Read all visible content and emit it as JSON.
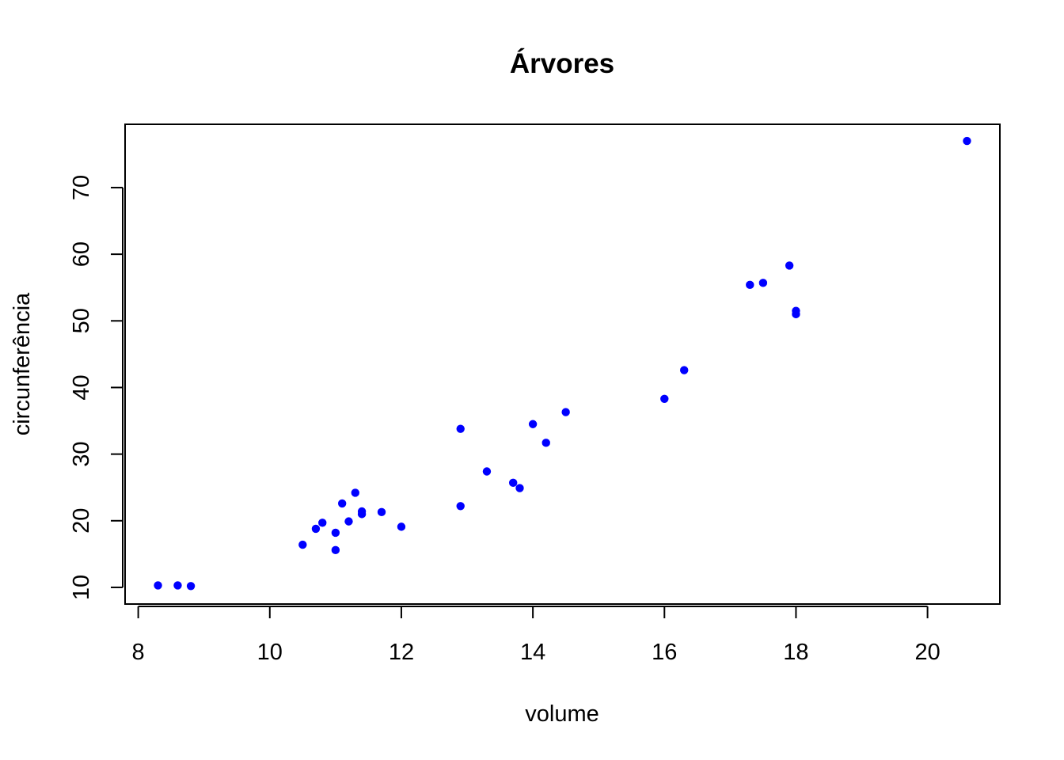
{
  "chart_data": {
    "type": "scatter",
    "title": "Árvores",
    "xlabel": "volume",
    "ylabel": "circunferência",
    "xlim": [
      7.8,
      21.1
    ],
    "ylim": [
      7.5,
      79.5
    ],
    "x_ticks": [
      8,
      10,
      12,
      14,
      16,
      18,
      20
    ],
    "y_ticks": [
      10,
      20,
      30,
      40,
      50,
      60,
      70
    ],
    "grid": false,
    "point_color": "#0000ff",
    "points": [
      {
        "x": 8.3,
        "y": 10.3
      },
      {
        "x": 8.6,
        "y": 10.3
      },
      {
        "x": 8.8,
        "y": 10.2
      },
      {
        "x": 10.5,
        "y": 16.4
      },
      {
        "x": 10.7,
        "y": 18.8
      },
      {
        "x": 10.8,
        "y": 19.7
      },
      {
        "x": 11.0,
        "y": 15.6
      },
      {
        "x": 11.0,
        "y": 18.2
      },
      {
        "x": 11.1,
        "y": 22.6
      },
      {
        "x": 11.2,
        "y": 19.9
      },
      {
        "x": 11.3,
        "y": 24.2
      },
      {
        "x": 11.4,
        "y": 21.0
      },
      {
        "x": 11.4,
        "y": 21.4
      },
      {
        "x": 11.7,
        "y": 21.3
      },
      {
        "x": 12.0,
        "y": 19.1
      },
      {
        "x": 12.9,
        "y": 22.2
      },
      {
        "x": 12.9,
        "y": 33.8
      },
      {
        "x": 13.3,
        "y": 27.4
      },
      {
        "x": 13.7,
        "y": 25.7
      },
      {
        "x": 13.8,
        "y": 24.9
      },
      {
        "x": 14.0,
        "y": 34.5
      },
      {
        "x": 14.2,
        "y": 31.7
      },
      {
        "x": 14.5,
        "y": 36.3
      },
      {
        "x": 16.0,
        "y": 38.3
      },
      {
        "x": 16.3,
        "y": 42.6
      },
      {
        "x": 17.3,
        "y": 55.4
      },
      {
        "x": 17.5,
        "y": 55.7
      },
      {
        "x": 17.9,
        "y": 58.3
      },
      {
        "x": 18.0,
        "y": 51.5
      },
      {
        "x": 18.0,
        "y": 51.0
      },
      {
        "x": 20.6,
        "y": 77.0
      }
    ]
  }
}
